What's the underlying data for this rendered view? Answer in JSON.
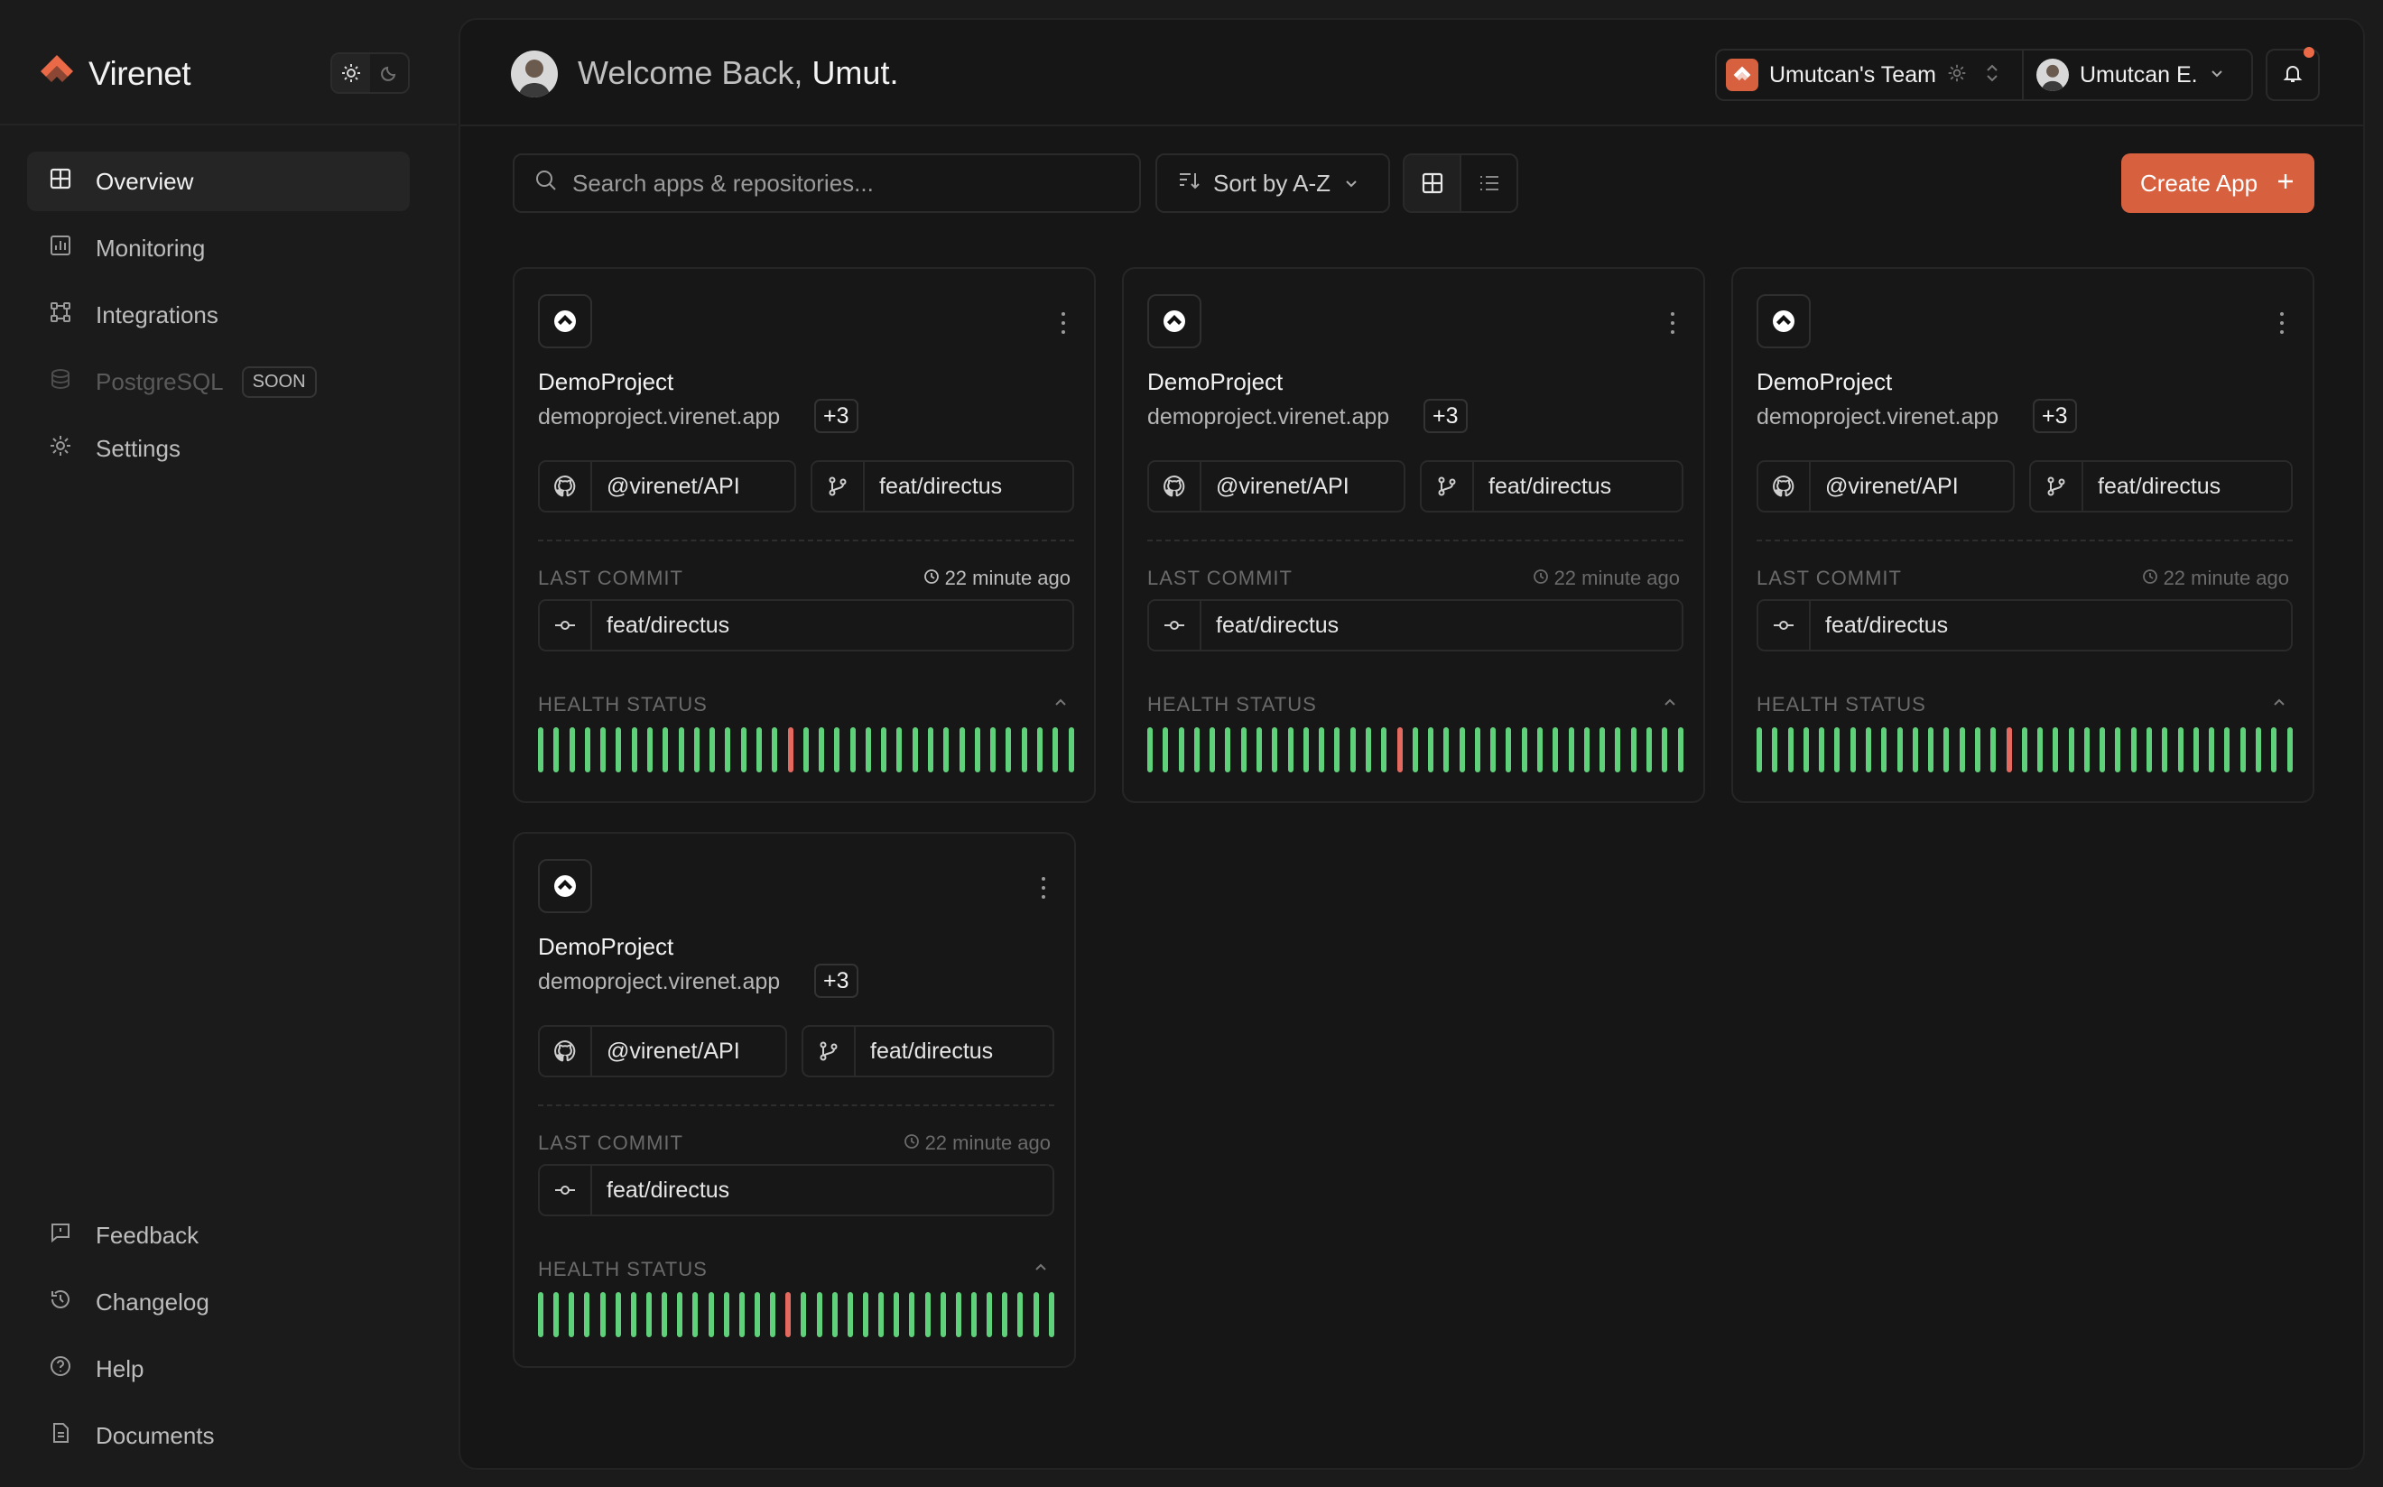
{
  "brand": {
    "name": "Virenet",
    "color": "#ea6a48"
  },
  "sidebar": {
    "items": [
      {
        "label": "Overview",
        "icon": "grid-icon"
      },
      {
        "label": "Monitoring",
        "icon": "chart-icon"
      },
      {
        "label": "Integrations",
        "icon": "integrations-icon"
      },
      {
        "label": "PostgreSQL",
        "icon": "database-icon",
        "badge": "SOON"
      },
      {
        "label": "Settings",
        "icon": "gear-icon"
      }
    ],
    "bottom": [
      {
        "label": "Feedback",
        "icon": "feedback-icon"
      },
      {
        "label": "Changelog",
        "icon": "history-icon"
      },
      {
        "label": "Help",
        "icon": "help-icon"
      },
      {
        "label": "Documents",
        "icon": "document-icon"
      }
    ]
  },
  "header": {
    "welcome": "Welcome Back,",
    "user_first": "Umut.",
    "team": "Umutcan's Team",
    "user": "Umutcan E."
  },
  "toolbar": {
    "search_placeholder": "Search apps & repositories...",
    "sort": "Sort by A-Z",
    "create": "Create App"
  },
  "labels": {
    "last_commit": "LAST COMMIT",
    "health": "HEALTH STATUS"
  },
  "cards": [
    {
      "title": "DemoProject",
      "domain": "demoproject.virenet.app",
      "extra": "+3",
      "repo": "@virenet/API",
      "branch": "feat/directus",
      "time": "22 minute ago",
      "commit": "feat/directus",
      "health": [
        1,
        1,
        1,
        1,
        1,
        1,
        1,
        1,
        1,
        1,
        1,
        1,
        1,
        1,
        1,
        1,
        0,
        1,
        1,
        1,
        1,
        1,
        1,
        1,
        1,
        1,
        1,
        1,
        1,
        1,
        1,
        1,
        1,
        1,
        1
      ]
    },
    {
      "title": "DemoProject",
      "domain": "demoproject.virenet.app",
      "extra": "+3",
      "repo": "@virenet/API",
      "branch": "feat/directus",
      "time": "22 minute ago",
      "commit": "feat/directus",
      "health": [
        1,
        1,
        1,
        1,
        1,
        1,
        1,
        1,
        1,
        1,
        1,
        1,
        1,
        1,
        1,
        1,
        0,
        1,
        1,
        1,
        1,
        1,
        1,
        1,
        1,
        1,
        1,
        1,
        1,
        1,
        1,
        1,
        1,
        1,
        1
      ]
    },
    {
      "title": "DemoProject",
      "domain": "demoproject.virenet.app",
      "extra": "+3",
      "repo": "@virenet/API",
      "branch": "feat/directus",
      "time": "22 minute ago",
      "commit": "feat/directus",
      "health": [
        1,
        1,
        1,
        1,
        1,
        1,
        1,
        1,
        1,
        1,
        1,
        1,
        1,
        1,
        1,
        1,
        0,
        1,
        1,
        1,
        1,
        1,
        1,
        1,
        1,
        1,
        1,
        1,
        1,
        1,
        1,
        1,
        1,
        1,
        1
      ]
    },
    {
      "title": "DemoProject",
      "domain": "demoproject.virenet.app",
      "extra": "+3",
      "repo": "@virenet/API",
      "branch": "feat/directus",
      "time": "22 minute ago",
      "commit": "feat/directus",
      "health": [
        1,
        1,
        1,
        1,
        1,
        1,
        1,
        1,
        1,
        1,
        1,
        1,
        1,
        1,
        1,
        1,
        0,
        1,
        1,
        1,
        1,
        1,
        1,
        1,
        1,
        1,
        1,
        1,
        1,
        1,
        1,
        1,
        1,
        1
      ]
    }
  ]
}
